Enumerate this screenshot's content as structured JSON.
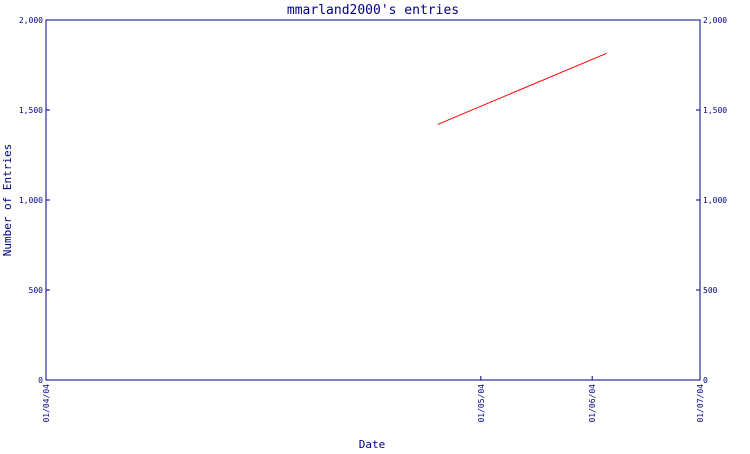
{
  "colors": {
    "axis": "#000080",
    "text": "#000080",
    "series": "#ff0000",
    "background": "#ffffff"
  },
  "chart_data": {
    "type": "line",
    "title": "mmarland2000's entries",
    "xlabel": "Date",
    "ylabel": "Number of Entries",
    "ylim": [
      0,
      2000
    ],
    "xlim": [
      "2004-01-01",
      "2004-07-01"
    ],
    "y_ticks": [
      0,
      500,
      1000,
      1500,
      2000
    ],
    "y_tick_labels": [
      "0",
      "500",
      "1,000",
      "1,500",
      "2,000"
    ],
    "x_ticks": [
      "2004-01-01",
      "2004-05-01",
      "2004-06-01",
      "2004-07-01"
    ],
    "x_tick_labels": [
      "01/04/04",
      "01/05/04",
      "01/06/04",
      "01/07/04"
    ],
    "grid": false,
    "legend": "none",
    "series": [
      {
        "color": "#ff0000",
        "points": [
          {
            "x": "2004-04-19",
            "y": 1420
          },
          {
            "x": "2004-06-05",
            "y": 1815
          }
        ]
      }
    ]
  }
}
